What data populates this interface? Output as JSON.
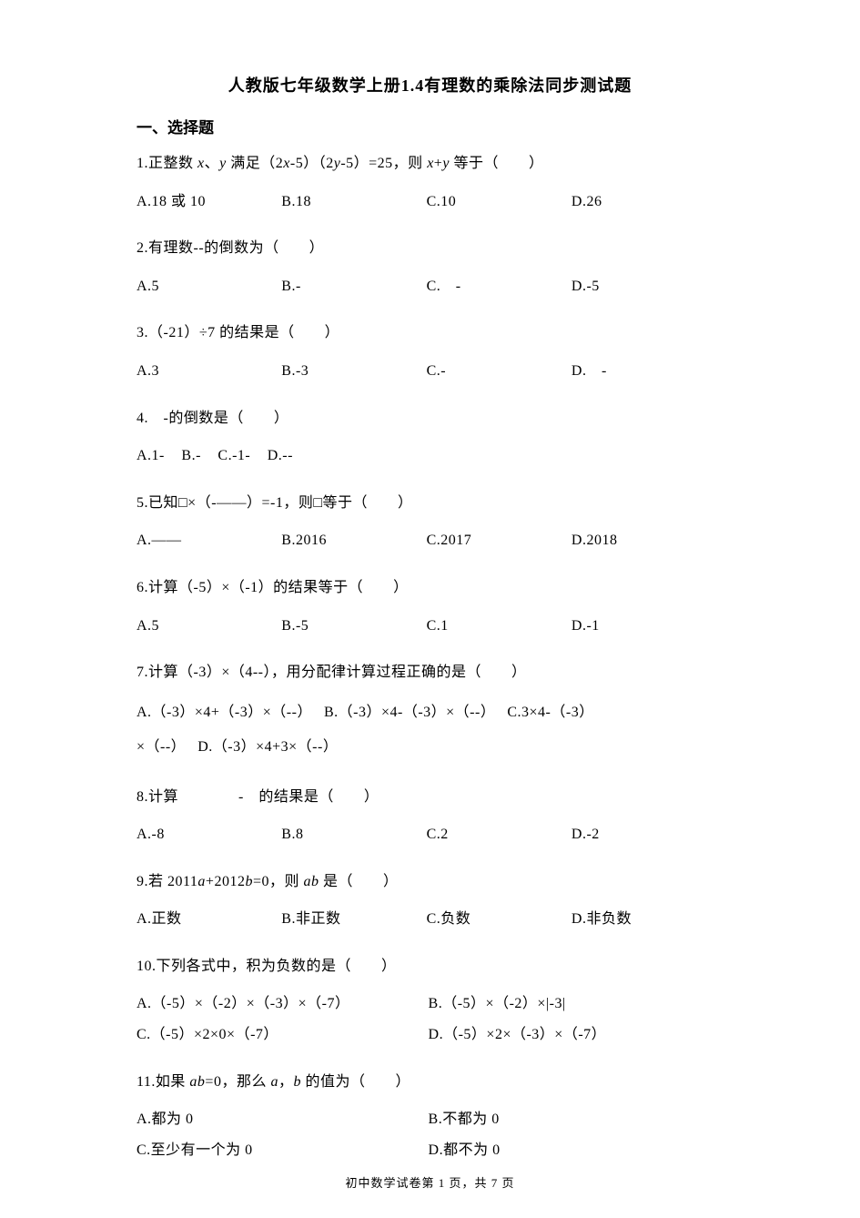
{
  "title": "人教版七年级数学上册1.4有理数的乘除法同步测试题",
  "section1_heading": "一、选择题",
  "q1": {
    "stem": "1.正整数 x、y 满足（2x-5）（2y-5）=25，则 x+y 等于（　　）",
    "a": "A.18 或 10",
    "b": "B.18",
    "c": "C.10",
    "d": "D.26"
  },
  "q2": {
    "stem": "2.有理数--的倒数为（　　）",
    "a": "A.5",
    "b": "B.-",
    "c": "C.　-",
    "d": "D.-5"
  },
  "q3": {
    "stem": "3.（-21）÷7 的结果是（　　）",
    "a": "A.3",
    "b": "B.-3",
    "c": "C.-",
    "d": "D.　-"
  },
  "q4": {
    "stem": "4.　-的倒数是（　　）",
    "a": "A.1-",
    "b": "B.-",
    "c": "C.-1-",
    "d": "D.--"
  },
  "q5": {
    "stem": "5.已知□×（-——）=-1，则□等于（　　）",
    "a": "A.——",
    "b": "B.2016",
    "c": "C.2017",
    "d": "D.2018"
  },
  "q6": {
    "stem": "6.计算（-5）×（-1）的结果等于（　　）",
    "a": "A.5",
    "b": "B.-5",
    "c": "C.1",
    "d": "D.-1"
  },
  "q7": {
    "stem": "7.计算（-3）×（4--），用分配律计算过程正确的是（　　）",
    "line1a": "A.（-3）×4+（-3）×（--）",
    "line1b": "B.（-3）×4-（-3）×（--）",
    "line1c": "C.3×4-（-3）",
    "line2a": "×（--）",
    "line2d": "D.（-3）×4+3×（--）"
  },
  "q8": {
    "stem": "8.计算　　　　-　的结果是（　　）",
    "a": "A.-8",
    "b": "B.8",
    "c": "C.2",
    "d": "D.-2"
  },
  "q9": {
    "stem": "9.若 2011a+2012b=0，则 ab 是（　　）",
    "a": "A.正数",
    "b": "B.非正数",
    "c": "C.负数",
    "d": "D.非负数"
  },
  "q10": {
    "stem": "10.下列各式中，积为负数的是（　　）",
    "a": "A.（-5）×（-2）×（-3）×（-7）",
    "b": "B.（-5）×（-2）×|-3|",
    "c": "C.（-5）×2×0×（-7）",
    "d": "D.（-5）×2×（-3）×（-7）"
  },
  "q11": {
    "stem": "11.如果 ab=0，那么 a，b 的值为（　　）",
    "a": "A.都为 0",
    "b": "B.不都为 0",
    "c": "C.至少有一个为 0",
    "d": "D.都不为 0"
  },
  "footer": "初中数学试卷第 1 页，共 7 页"
}
